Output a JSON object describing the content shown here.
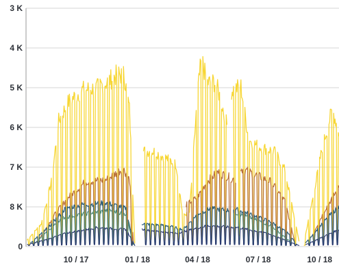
{
  "chart_data": {
    "type": "line",
    "title": "",
    "xlabel": "",
    "ylabel": "",
    "y_tick_labels": [
      "0",
      "8 K",
      "7 K",
      "6 K",
      "5 K",
      "4 K",
      "3 K"
    ],
    "y_tick_values": [
      0,
      1,
      2,
      3,
      4,
      5,
      6
    ],
    "ylim": [
      0,
      6
    ],
    "x_tick_labels": [
      "10 / 17",
      "01 / 18",
      "04 / 18",
      "07 / 18",
      "10 / 18"
    ],
    "x_tick_dates": [
      "2017-10-01",
      "2018-01-01",
      "2018-04-01",
      "2018-07-01",
      "2018-10-01"
    ],
    "xlim": [
      "2017-07-18",
      "2018-10-30"
    ],
    "grid": true,
    "legend": "none",
    "series": [
      {
        "color": "#f7d633",
        "stroke_width": 1.3,
        "segments": [
          {
            "start": "2017-07-20",
            "end": "2017-12-28",
            "envelope": [
              [
                "2017-07-20",
                0.18
              ],
              [
                "2017-08-10",
                0.6
              ],
              [
                "2017-08-25",
                1.7
              ],
              [
                "2017-09-05",
                3.3
              ],
              [
                "2017-09-20",
                3.8
              ],
              [
                "2017-10-10",
                4.1
              ],
              [
                "2017-11-01",
                4.15
              ],
              [
                "2017-11-15",
                4.3
              ],
              [
                "2017-12-01",
                4.5
              ],
              [
                "2017-12-12",
                4.5
              ],
              [
                "2017-12-20",
                3.6
              ],
              [
                "2017-12-28",
                0.1
              ]
            ]
          },
          {
            "start": "2018-01-10",
            "end": "2018-05-15",
            "envelope": [
              [
                "2018-01-10",
                2.5
              ],
              [
                "2018-01-25",
                2.5
              ],
              [
                "2018-02-10",
                2.35
              ],
              [
                "2018-02-28",
                2.15
              ],
              [
                "2018-03-10",
                0.8
              ],
              [
                "2018-03-20",
                0.9
              ],
              [
                "2018-04-01",
                4.0
              ],
              [
                "2018-04-07",
                4.95
              ],
              [
                "2018-04-15",
                4.3
              ],
              [
                "2018-04-28",
                4.3
              ],
              [
                "2018-05-05",
                3.9
              ],
              [
                "2018-05-15",
                3.2
              ]
            ]
          },
          {
            "start": "2018-05-22",
            "end": "2018-08-31",
            "envelope": [
              [
                "2018-05-22",
                4.1
              ],
              [
                "2018-06-05",
                4.2
              ],
              [
                "2018-06-15",
                3.0
              ],
              [
                "2018-06-20",
                2.75
              ],
              [
                "2018-07-05",
                2.6
              ],
              [
                "2018-07-25",
                2.5
              ],
              [
                "2018-08-10",
                2.0
              ],
              [
                "2018-08-31",
                0.15
              ]
            ]
          },
          {
            "start": "2018-09-08",
            "end": "2018-10-30",
            "envelope": [
              [
                "2018-09-08",
                0.15
              ],
              [
                "2018-09-20",
                1.2
              ],
              [
                "2018-10-05",
                2.6
              ],
              [
                "2018-10-20",
                3.6
              ],
              [
                "2018-10-30",
                3.0
              ]
            ]
          }
        ]
      },
      {
        "color": "#b8703a",
        "stroke_width": 1.2,
        "segments": [
          {
            "start": "2017-08-05",
            "end": "2017-12-26",
            "envelope": [
              [
                "2017-08-05",
                0.15
              ],
              [
                "2017-09-01",
                0.9
              ],
              [
                "2017-09-20",
                1.3
              ],
              [
                "2017-10-15",
                1.7
              ],
              [
                "2017-11-15",
                1.75
              ],
              [
                "2017-12-10",
                2.05
              ],
              [
                "2017-12-20",
                1.8
              ],
              [
                "2017-12-26",
                0.08
              ]
            ]
          },
          {
            "start": "2018-03-15",
            "end": "2018-05-28",
            "envelope": [
              [
                "2018-03-15",
                1.1
              ],
              [
                "2018-04-01",
                1.3
              ],
              [
                "2018-04-15",
                1.7
              ],
              [
                "2018-05-01",
                1.95
              ],
              [
                "2018-05-28",
                1.75
              ]
            ]
          },
          {
            "start": "2018-06-05",
            "end": "2018-08-25",
            "envelope": [
              [
                "2018-06-05",
                2.05
              ],
              [
                "2018-06-25",
                1.9
              ],
              [
                "2018-07-20",
                1.7
              ],
              [
                "2018-08-10",
                1.2
              ],
              [
                "2018-08-25",
                0.1
              ]
            ]
          },
          {
            "start": "2018-09-20",
            "end": "2018-10-30",
            "envelope": [
              [
                "2018-09-20",
                0.3
              ],
              [
                "2018-10-10",
                1.0
              ],
              [
                "2018-10-30",
                1.55
              ]
            ]
          }
        ]
      },
      {
        "color": "#2b5e78",
        "stroke_width": 1.2,
        "segments": [
          {
            "start": "2017-07-25",
            "end": "2017-12-26",
            "envelope": [
              [
                "2017-07-25",
                0.1
              ],
              [
                "2017-08-20",
                0.5
              ],
              [
                "2017-09-15",
                1.0
              ],
              [
                "2017-10-10",
                1.1
              ],
              [
                "2017-11-15",
                1.15
              ],
              [
                "2017-12-15",
                1.0
              ],
              [
                "2017-12-26",
                0.06
              ]
            ]
          },
          {
            "start": "2018-01-08",
            "end": "2018-05-20",
            "envelope": [
              [
                "2018-01-08",
                0.6
              ],
              [
                "2018-02-15",
                0.55
              ],
              [
                "2018-03-10",
                0.45
              ],
              [
                "2018-04-01",
                0.85
              ],
              [
                "2018-04-20",
                1.0
              ],
              [
                "2018-05-20",
                0.95
              ]
            ]
          },
          {
            "start": "2018-05-25",
            "end": "2018-08-28",
            "envelope": [
              [
                "2018-05-25",
                1.0
              ],
              [
                "2018-06-20",
                0.85
              ],
              [
                "2018-07-20",
                0.65
              ],
              [
                "2018-08-15",
                0.35
              ],
              [
                "2018-08-28",
                0.05
              ]
            ]
          },
          {
            "start": "2018-09-10",
            "end": "2018-10-30",
            "envelope": [
              [
                "2018-09-10",
                0.1
              ],
              [
                "2018-10-15",
                0.8
              ],
              [
                "2018-10-30",
                1.05
              ]
            ]
          }
        ]
      },
      {
        "color": "#4f8b73",
        "stroke_width": 1.1,
        "segments": [
          {
            "start": "2017-08-01",
            "end": "2017-12-26",
            "envelope": [
              [
                "2017-08-01",
                0.1
              ],
              [
                "2017-09-10",
                0.75
              ],
              [
                "2017-10-10",
                0.85
              ],
              [
                "2017-11-20",
                0.95
              ],
              [
                "2017-12-15",
                0.85
              ],
              [
                "2017-12-26",
                0.05
              ]
            ]
          },
          {
            "start": "2018-05-25",
            "end": "2018-08-20",
            "envelope": [
              [
                "2018-05-25",
                0.9
              ],
              [
                "2018-06-20",
                0.75
              ],
              [
                "2018-07-20",
                0.55
              ],
              [
                "2018-08-20",
                0.1
              ]
            ]
          }
        ]
      },
      {
        "color": "#2a3970",
        "stroke_width": 1.1,
        "segments": [
          {
            "start": "2017-07-20",
            "end": "2017-12-28",
            "envelope": [
              [
                "2017-07-20",
                0.05
              ],
              [
                "2017-08-20",
                0.2
              ],
              [
                "2017-09-15",
                0.35
              ],
              [
                "2017-11-01",
                0.5
              ],
              [
                "2017-12-15",
                0.45
              ],
              [
                "2017-12-28",
                0.03
              ]
            ]
          },
          {
            "start": "2018-01-08",
            "end": "2018-08-31",
            "envelope": [
              [
                "2018-01-08",
                0.45
              ],
              [
                "2018-03-01",
                0.35
              ],
              [
                "2018-04-15",
                0.55
              ],
              [
                "2018-06-01",
                0.5
              ],
              [
                "2018-07-15",
                0.35
              ],
              [
                "2018-08-31",
                0.03
              ]
            ]
          },
          {
            "start": "2018-09-10",
            "end": "2018-10-30",
            "envelope": [
              [
                "2018-09-10",
                0.05
              ],
              [
                "2018-10-30",
                0.45
              ]
            ]
          }
        ]
      }
    ]
  }
}
